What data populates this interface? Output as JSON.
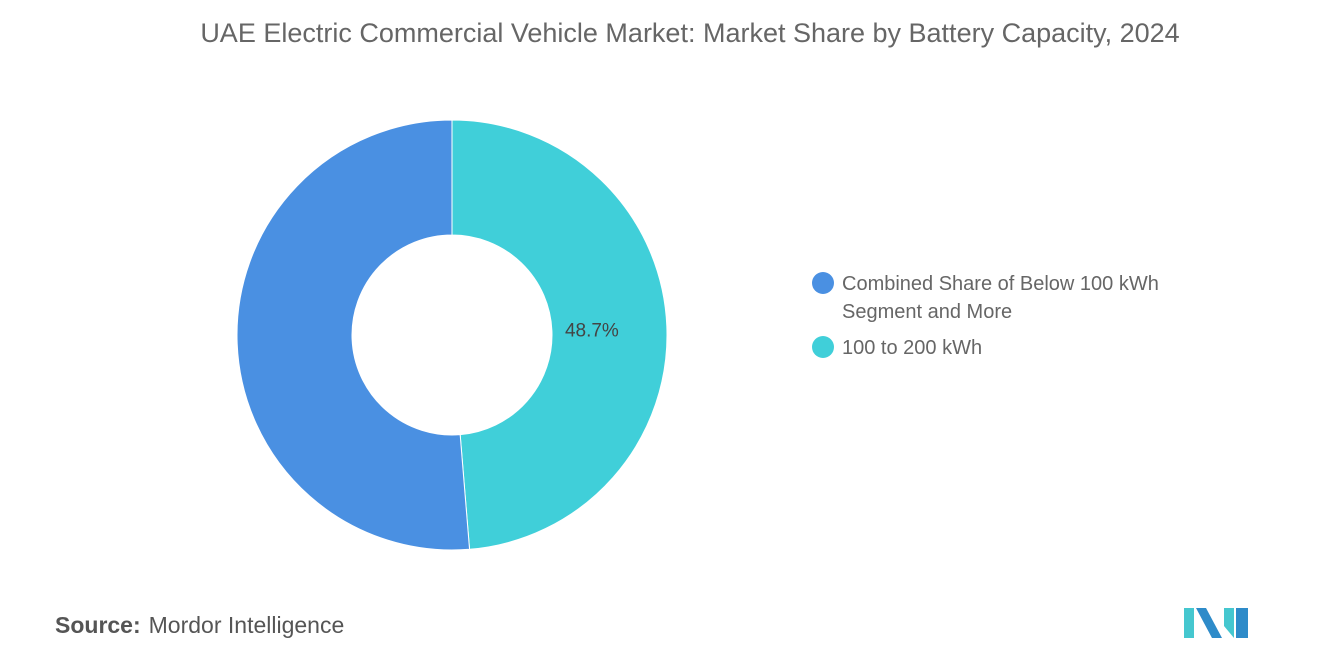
{
  "chart_data": {
    "type": "pie",
    "donut": true,
    "title": "UAE Electric Commercial Vehicle Market: Market Share by Battery Capacity, 2024",
    "slices": [
      {
        "name": "100 to 200 kWh",
        "value": 48.7,
        "label": "48.7%",
        "color": "#40CFD9"
      },
      {
        "name": "Combined Share of Below 100 kWh Segment and More",
        "value": 51.3,
        "label": "",
        "color": "#4A90E2"
      }
    ],
    "legend": {
      "placement": "right",
      "entries": [
        {
          "label": "Combined Share of Below 100 kWh Segment and More",
          "color": "#4A90E2"
        },
        {
          "label": "100 to 200 kWh",
          "color": "#40CFD9"
        }
      ]
    }
  },
  "source": {
    "label": "Source:",
    "value": "Mordor Intelligence"
  },
  "logo": {
    "name": "mordor-intelligence-logo",
    "colors": [
      "#2E8BC9",
      "#45C7CF"
    ]
  }
}
